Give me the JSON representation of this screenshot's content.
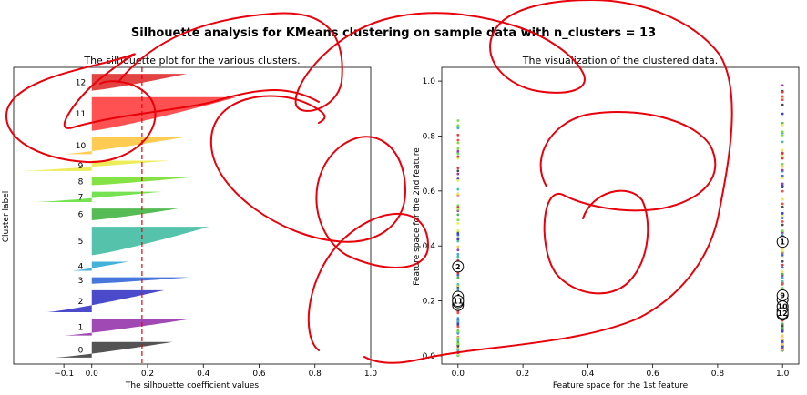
{
  "suptitle": "Silhouette analysis for KMeans clustering on sample data with n_clusters = 13",
  "chart_data": [
    {
      "type": "bar",
      "subtype": "silhouette",
      "title": "The silhouette plot for the various clusters.",
      "xlabel": "The silhouette coefficient values",
      "ylabel": "Cluster label",
      "xlim": [
        -0.1,
        1.0
      ],
      "xticks": [
        "−0.1",
        "0.0",
        "0.2",
        "0.4",
        "0.6",
        "0.8",
        "1.0"
      ],
      "average_silhouette": 0.18,
      "clusters": [
        {
          "label": "0",
          "color": "#4a4a4a",
          "size": 24,
          "min": -0.13,
          "max": 0.29
        },
        {
          "label": "1",
          "color": "#9b3fb0",
          "size": 26,
          "min": -0.1,
          "max": 0.36
        },
        {
          "label": "2",
          "color": "#4040c8",
          "size": 34,
          "min": -0.16,
          "max": 0.26
        },
        {
          "label": "3",
          "color": "#3f6fd8",
          "size": 10,
          "min": 0.0,
          "max": 0.35
        },
        {
          "label": "4",
          "color": "#3aaed8",
          "size": 14,
          "min": -0.07,
          "max": 0.13
        },
        {
          "label": "5",
          "color": "#4cc0a8",
          "size": 44,
          "min": 0.0,
          "max": 0.42
        },
        {
          "label": "6",
          "color": "#4cb84c",
          "size": 18,
          "min": 0.0,
          "max": 0.31
        },
        {
          "label": "7",
          "color": "#6ee048",
          "size": 16,
          "min": -0.2,
          "max": 0.25
        },
        {
          "label": "8",
          "color": "#7de03a",
          "size": 12,
          "min": 0.0,
          "max": 0.35
        },
        {
          "label": "9",
          "color": "#ecec50",
          "size": 16,
          "min": -0.25,
          "max": 0.28
        },
        {
          "label": "10",
          "color": "#ffc84a",
          "size": 26,
          "min": -0.1,
          "max": 0.33
        },
        {
          "label": "11",
          "color": "#ff4848",
          "size": 52,
          "min": 0.0,
          "max": 0.52
        },
        {
          "label": "12",
          "color": "#e03a3a",
          "size": 26,
          "min": 0.0,
          "max": 0.34
        }
      ]
    },
    {
      "type": "scatter",
      "title": "The visualization of the clustered data.",
      "xlabel": "Feature space for the 1st feature",
      "ylabel": "Feature space for the 2nd feature",
      "xlim": [
        -0.05,
        1.05
      ],
      "ylim": [
        -0.03,
        1.05
      ],
      "xticks": [
        "0.0",
        "0.2",
        "0.4",
        "0.6",
        "0.8",
        "1.0"
      ],
      "yticks": [
        "0.0",
        "0.2",
        "0.4",
        "0.6",
        "0.8",
        "1.0"
      ],
      "columns": [
        {
          "x": 0.0,
          "y_min": 0.0,
          "y_max": 0.9
        },
        {
          "x": 1.0,
          "y_min": 0.02,
          "y_max": 1.0
        }
      ],
      "centers": [
        {
          "label": "0",
          "x": 0.0,
          "y": 0.205
        },
        {
          "label": "1",
          "x": 1.0,
          "y": 0.415
        },
        {
          "label": "2",
          "x": 0.0,
          "y": 0.325
        },
        {
          "label": "3",
          "x": 0.0,
          "y": 0.185
        },
        {
          "label": "4",
          "x": 0.0,
          "y": 0.215
        },
        {
          "label": "5",
          "x": 0.0,
          "y": 0.195
        },
        {
          "label": "6",
          "x": 1.0,
          "y": 0.205
        },
        {
          "label": "7",
          "x": 1.0,
          "y": 0.165
        },
        {
          "label": "8",
          "x": 1.0,
          "y": 0.15
        },
        {
          "label": "9",
          "x": 1.0,
          "y": 0.22
        },
        {
          "label": "10",
          "x": 1.0,
          "y": 0.18
        },
        {
          "label": "11",
          "x": 0.0,
          "y": 0.2
        },
        {
          "label": "12",
          "x": 1.0,
          "y": 0.155
        }
      ]
    }
  ],
  "annotation": {
    "description": "freehand red ink scribble drawn over the figure",
    "color": "#e8000b"
  }
}
